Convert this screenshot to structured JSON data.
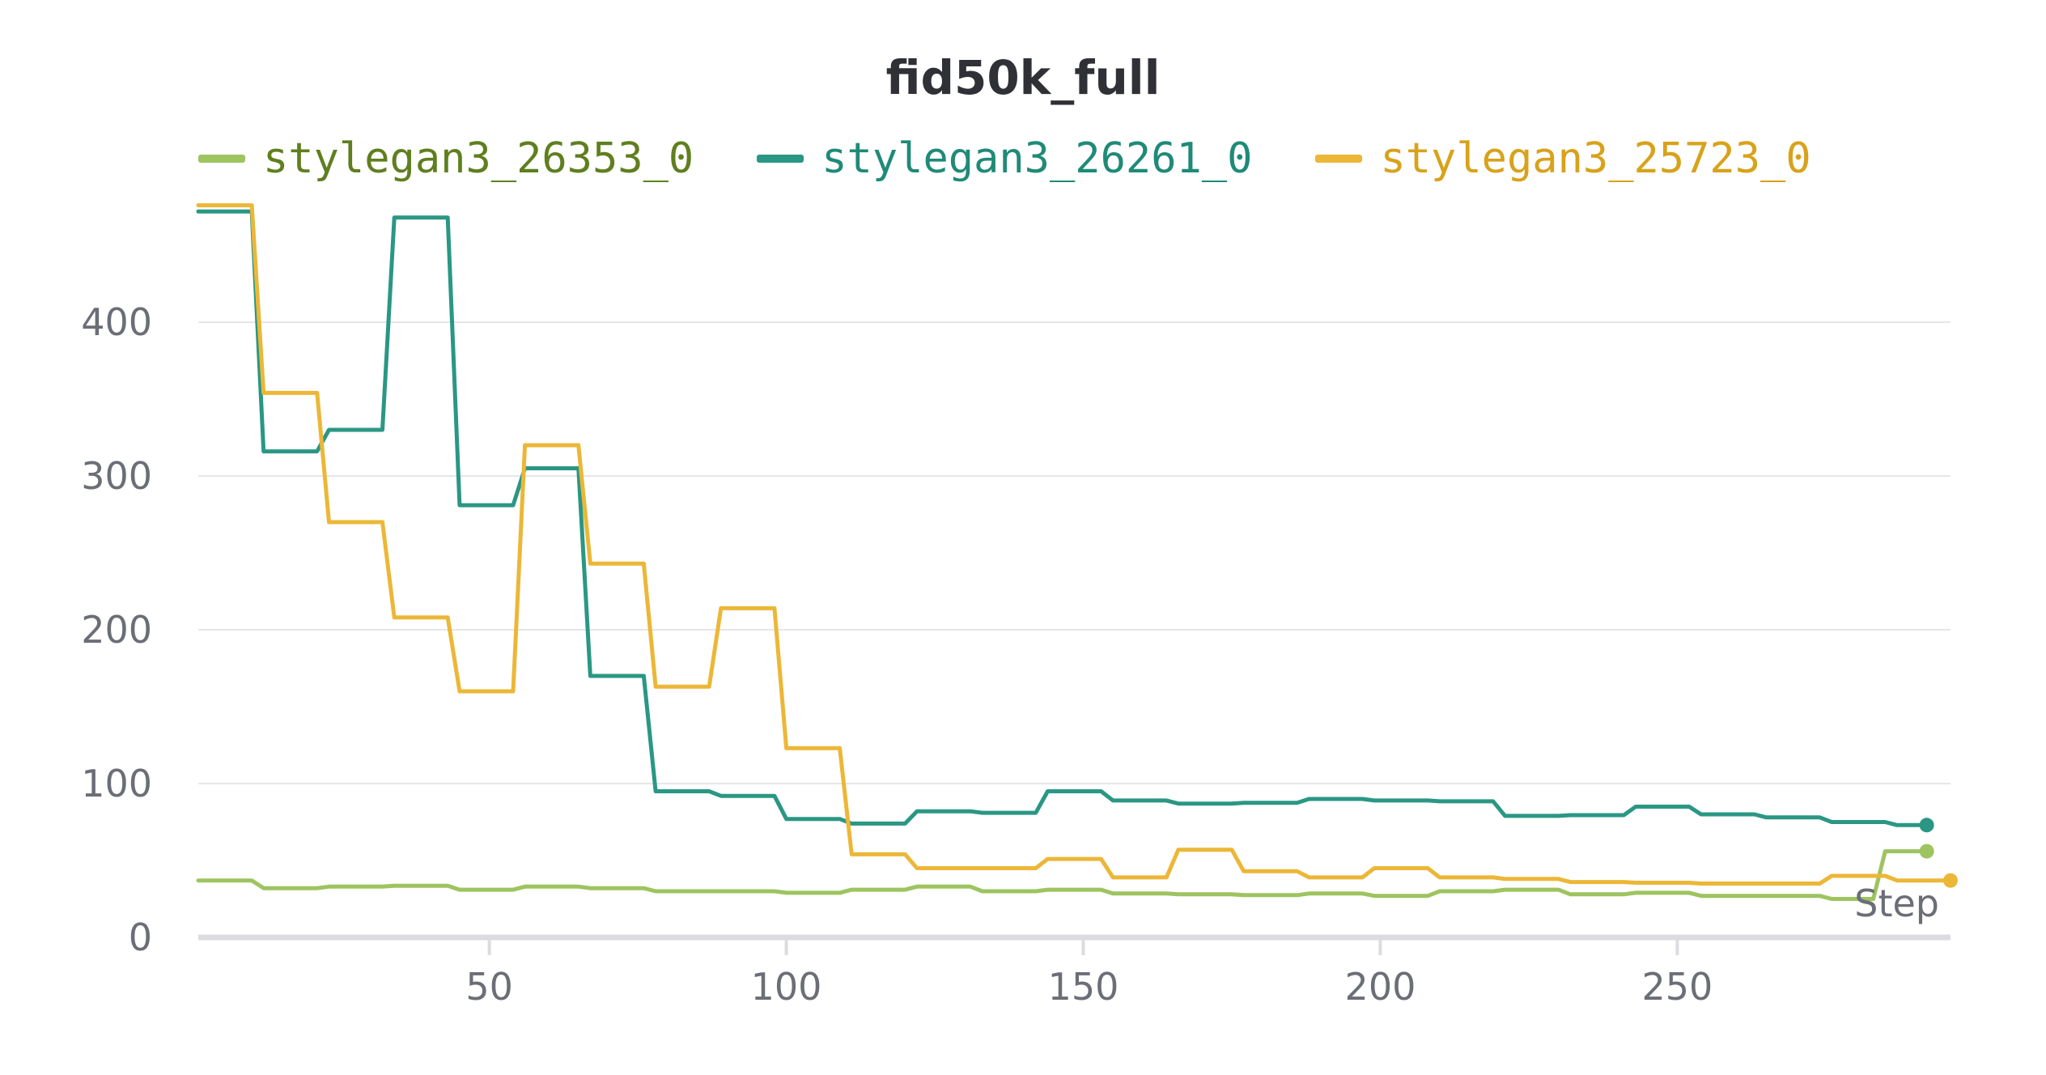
{
  "chart_data": {
    "type": "line",
    "title": "fid50k_full",
    "xlabel": "Step",
    "ylabel": "",
    "xlim": [
      1,
      296
    ],
    "ylim": [
      0,
      475
    ],
    "x_ticks": [
      50,
      100,
      150,
      200,
      250
    ],
    "y_ticks": [
      0,
      100,
      200,
      300,
      400
    ],
    "grid": true,
    "legend_position": "top",
    "series": [
      {
        "name": "stylegan3_26353_0",
        "color": "#9dc45f",
        "label_color": "#5f7f1e",
        "x": [
          1,
          10,
          12,
          21,
          23,
          32,
          34,
          43,
          45,
          54,
          56,
          65,
          67,
          76,
          78,
          87,
          89,
          98,
          100,
          109,
          111,
          120,
          122,
          131,
          133,
          142,
          144,
          153,
          155,
          164,
          166,
          175,
          177,
          186,
          188,
          197,
          199,
          208,
          210,
          219,
          221,
          230,
          232,
          241,
          243,
          252,
          254,
          263,
          265,
          274,
          276,
          283,
          285,
          289,
          292
        ],
        "y": [
          37,
          37,
          32,
          32,
          33,
          33,
          33.5,
          33.5,
          31,
          31,
          33,
          33,
          32,
          32,
          30,
          30,
          30,
          30,
          29,
          29,
          31,
          31,
          33,
          33,
          30,
          30,
          31,
          31,
          28.5,
          28.5,
          28,
          28,
          27.5,
          27.5,
          28.5,
          28.5,
          27,
          27,
          30,
          30,
          31,
          31,
          28,
          28,
          29,
          29,
          27,
          27,
          27,
          27,
          25,
          25,
          56,
          56,
          56
        ]
      },
      {
        "name": "stylegan3_26261_0",
        "color": "#2a9784",
        "label_color": "#1f8a77",
        "x": [
          1,
          10,
          12,
          21,
          23,
          32,
          34,
          43,
          45,
          54,
          56,
          65,
          67,
          76,
          78,
          87,
          89,
          98,
          100,
          109,
          111,
          120,
          122,
          131,
          133,
          142,
          144,
          153,
          155,
          164,
          166,
          175,
          177,
          186,
          188,
          197,
          199,
          208,
          210,
          219,
          221,
          230,
          232,
          241,
          243,
          252,
          254,
          263,
          265,
          274,
          276,
          285,
          287,
          292
        ],
        "y": [
          472,
          472,
          316,
          316,
          330,
          330,
          468,
          468,
          281,
          281,
          305,
          305,
          170,
          170,
          95,
          95,
          92,
          92,
          77,
          77,
          74,
          74,
          82,
          82,
          81,
          81,
          95,
          95,
          89,
          89,
          87,
          87,
          87.5,
          87.5,
          90,
          90,
          89,
          89,
          88.5,
          88.5,
          79,
          79,
          79.5,
          79.5,
          85,
          85,
          80,
          80,
          78,
          78,
          75,
          75,
          73,
          73
        ]
      },
      {
        "name": "stylegan3_25723_0",
        "color": "#ecb737",
        "label_color": "#d8a21a",
        "x": [
          1,
          10,
          12,
          21,
          23,
          32,
          34,
          43,
          45,
          54,
          56,
          65,
          67,
          76,
          78,
          87,
          89,
          98,
          100,
          109,
          111,
          120,
          122,
          131,
          133,
          142,
          144,
          153,
          155,
          164,
          166,
          175,
          177,
          186,
          188,
          197,
          199,
          208,
          210,
          219,
          221,
          230,
          232,
          241,
          243,
          252,
          254,
          263,
          265,
          274,
          276,
          285,
          287,
          296
        ],
        "y": [
          476,
          476,
          354,
          354,
          270,
          270,
          208,
          208,
          160,
          160,
          320,
          320,
          243,
          243,
          163,
          163,
          214,
          214,
          123,
          123,
          54,
          54,
          45,
          45,
          45,
          45,
          51,
          51,
          39,
          39,
          57,
          57,
          43,
          43,
          39,
          39,
          45,
          45,
          39,
          39,
          38,
          38,
          36,
          36,
          35.5,
          35.5,
          35,
          35,
          35,
          35,
          40,
          40,
          37,
          37
        ]
      }
    ]
  }
}
